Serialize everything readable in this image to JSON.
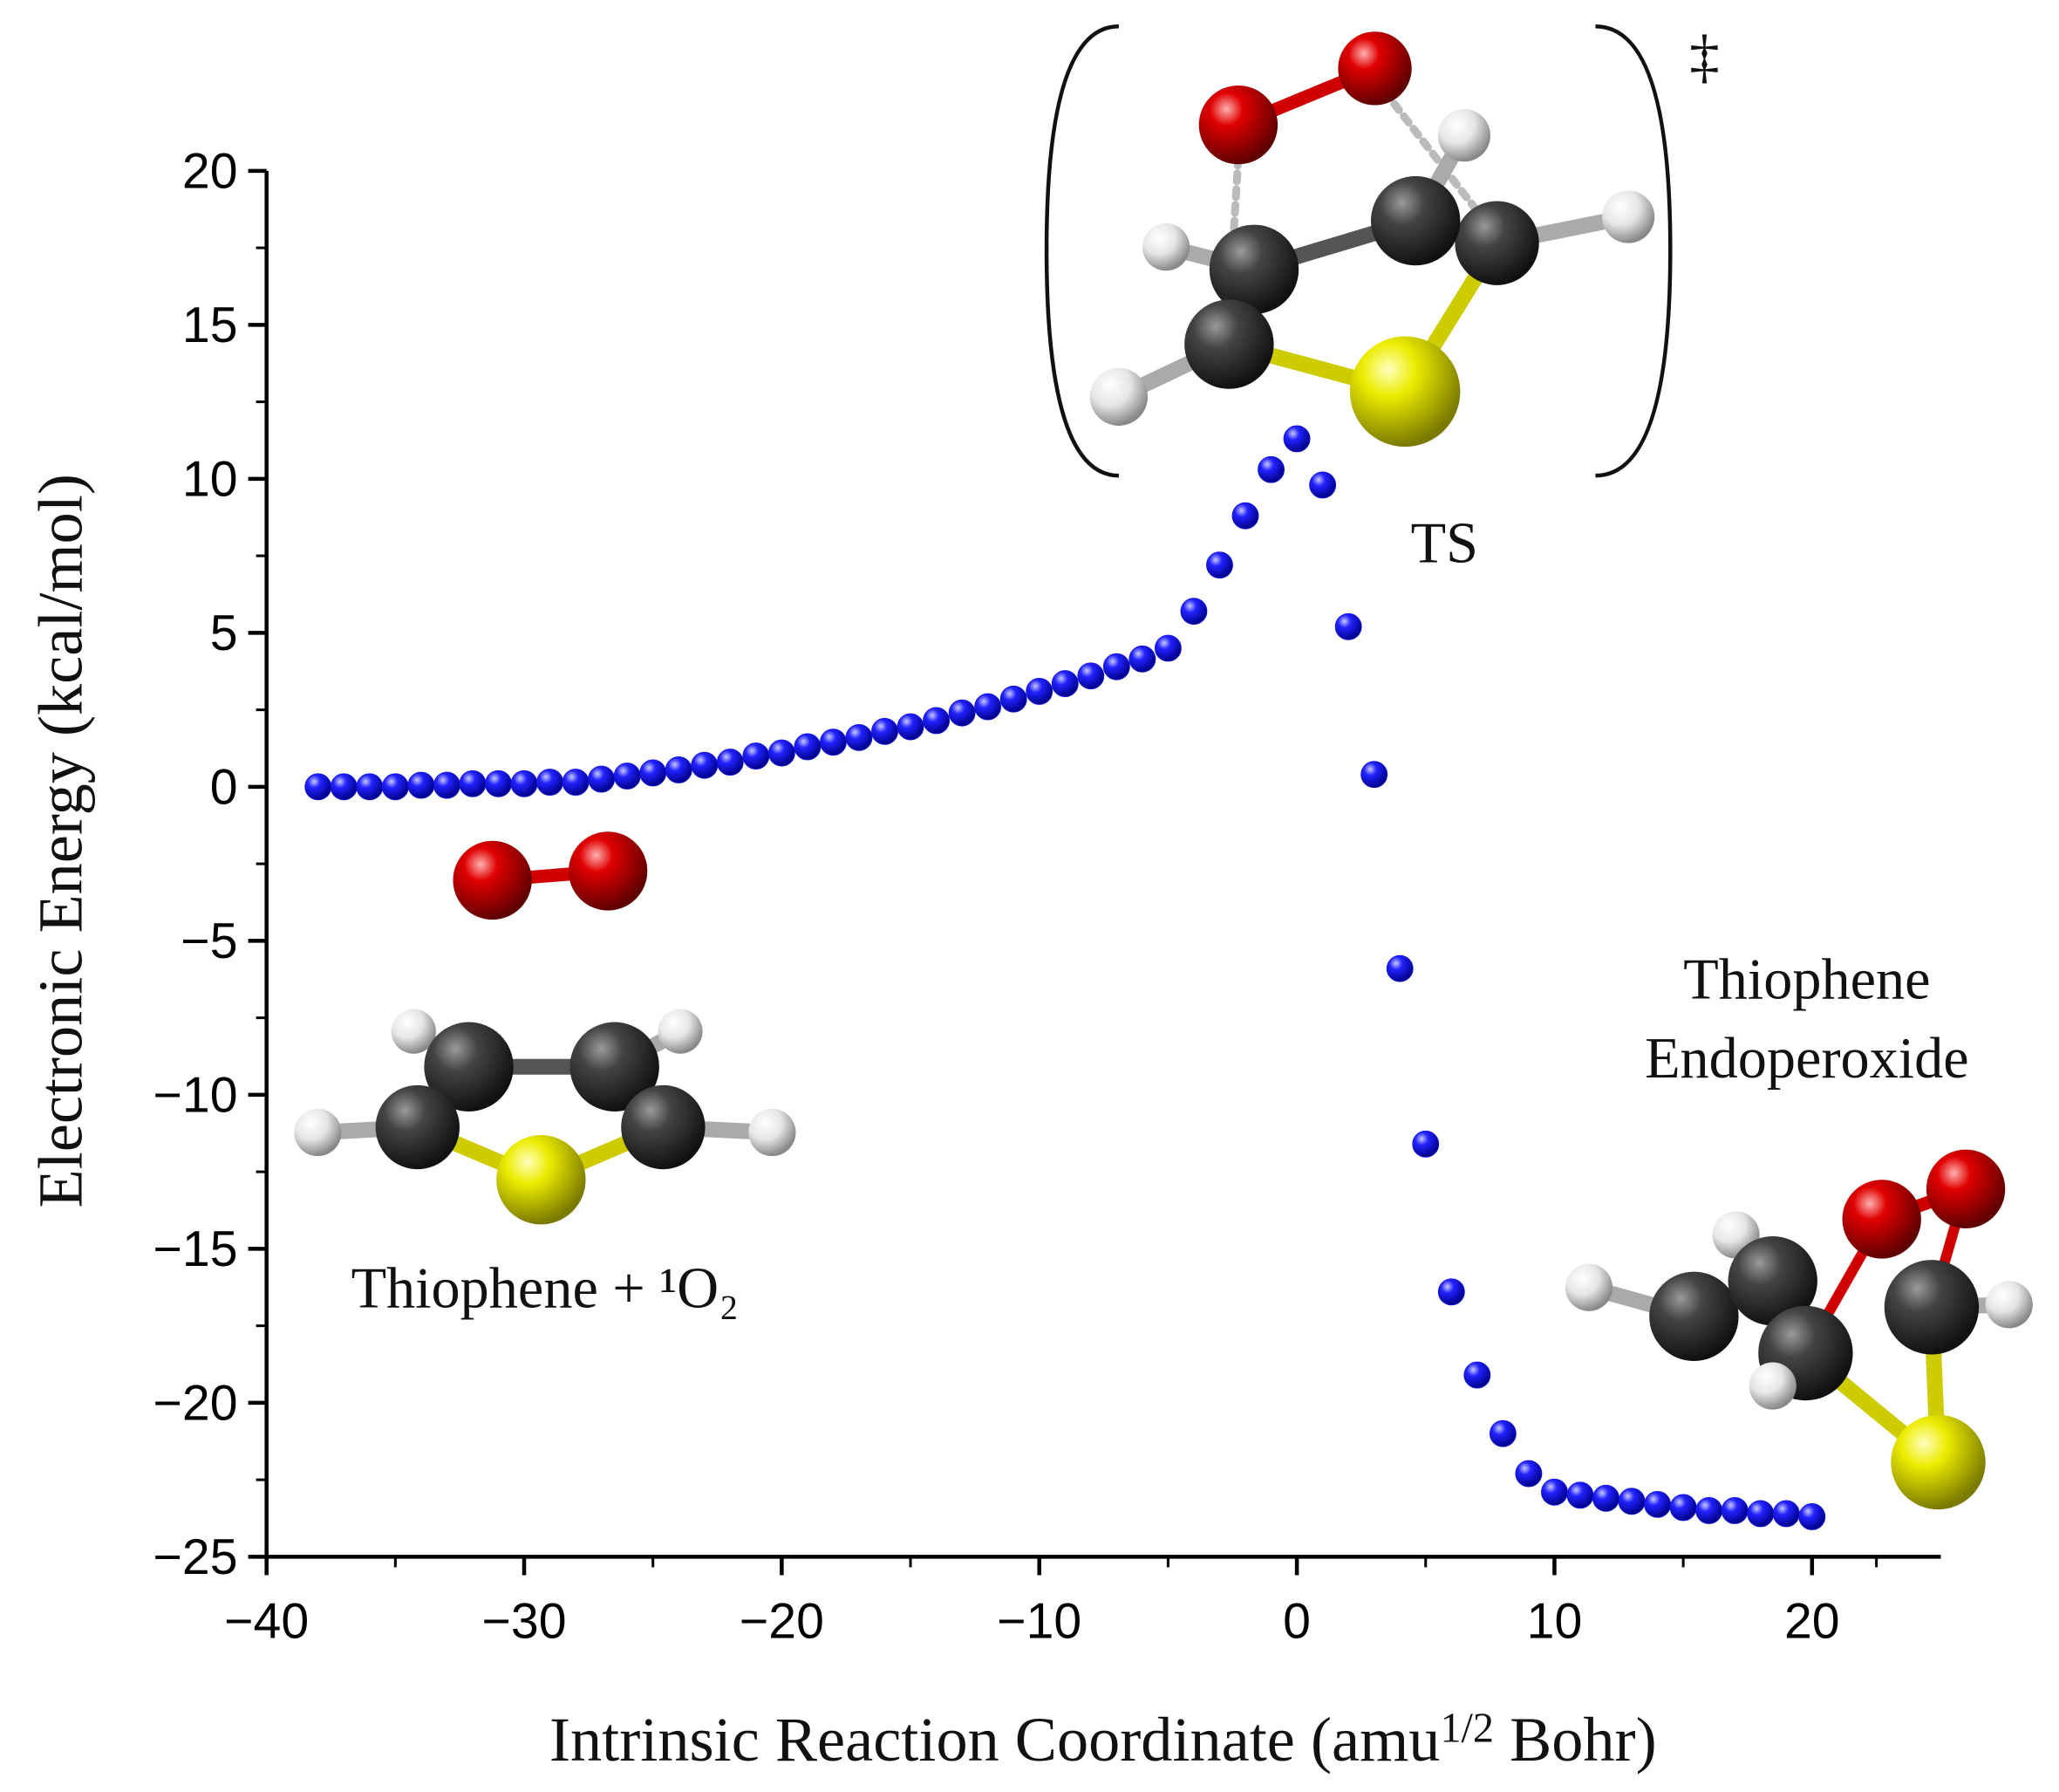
{
  "chart_data": {
    "type": "scatter",
    "x_label": {
      "text": "Intrinsic Reaction Coordinate (amu",
      "sup": "1/2",
      "rest": " Bohr)"
    },
    "y_label": "Electronic Energy (kcal/mol)",
    "annotations": {
      "ts": "TS",
      "dagger": "‡",
      "product_1": "Thiophene",
      "product_2": "Endoperoxide",
      "reactant": "Thiophene + ¹O₂"
    },
    "color": "#1414e6",
    "xlim": [
      -40,
      25
    ],
    "ylim": [
      -25,
      20
    ],
    "xticks": [
      {
        "value": -40,
        "label": "−40"
      },
      {
        "value": -30,
        "label": "−30"
      },
      {
        "value": -20,
        "label": "−20"
      },
      {
        "value": -10,
        "label": "−10"
      },
      0,
      10,
      20
    ],
    "yticks": [
      {
        "value": -25,
        "label": "−25"
      },
      {
        "value": -20,
        "label": "−20"
      },
      {
        "value": -15,
        "label": "−15"
      },
      {
        "value": -10,
        "label": "−10"
      },
      {
        "value": -5,
        "label": "−5"
      },
      0,
      5,
      10,
      15,
      20
    ],
    "x": [
      -38,
      -37,
      -36,
      -35,
      -34,
      -33,
      -32,
      -31,
      -30,
      -29,
      -28,
      -27,
      -26,
      -25,
      -24,
      -23,
      -22,
      -21,
      -20,
      -19,
      -18,
      -17,
      -16,
      -15,
      -14,
      -13,
      -12,
      -11,
      -10,
      -9,
      -8,
      -7,
      -6,
      -5,
      -4,
      -3,
      -2,
      -1,
      0,
      1,
      2,
      3,
      4,
      5,
      6,
      7,
      8,
      9,
      10,
      11,
      12,
      13,
      14,
      15,
      16,
      17,
      18,
      19,
      20
    ],
    "values": [
      0,
      0,
      0,
      0,
      0.05,
      0.05,
      0.1,
      0.1,
      0.1,
      0.15,
      0.15,
      0.25,
      0.35,
      0.45,
      0.55,
      0.7,
      0.8,
      1.0,
      1.1,
      1.3,
      1.45,
      1.6,
      1.8,
      1.95,
      2.15,
      2.4,
      2.6,
      2.85,
      3.1,
      3.35,
      3.6,
      3.9,
      4.15,
      4.5,
      5.7,
      7.2,
      8.8,
      10.3,
      11.3,
      9.8,
      5.2,
      0.4,
      -5.9,
      -11.6,
      -16.4,
      -19.1,
      -21.0,
      -22.3,
      -22.9,
      -23.0,
      -23.1,
      -23.2,
      -23.3,
      -23.4,
      -23.5,
      -23.5,
      -23.6,
      -23.6,
      -23.7
    ]
  }
}
